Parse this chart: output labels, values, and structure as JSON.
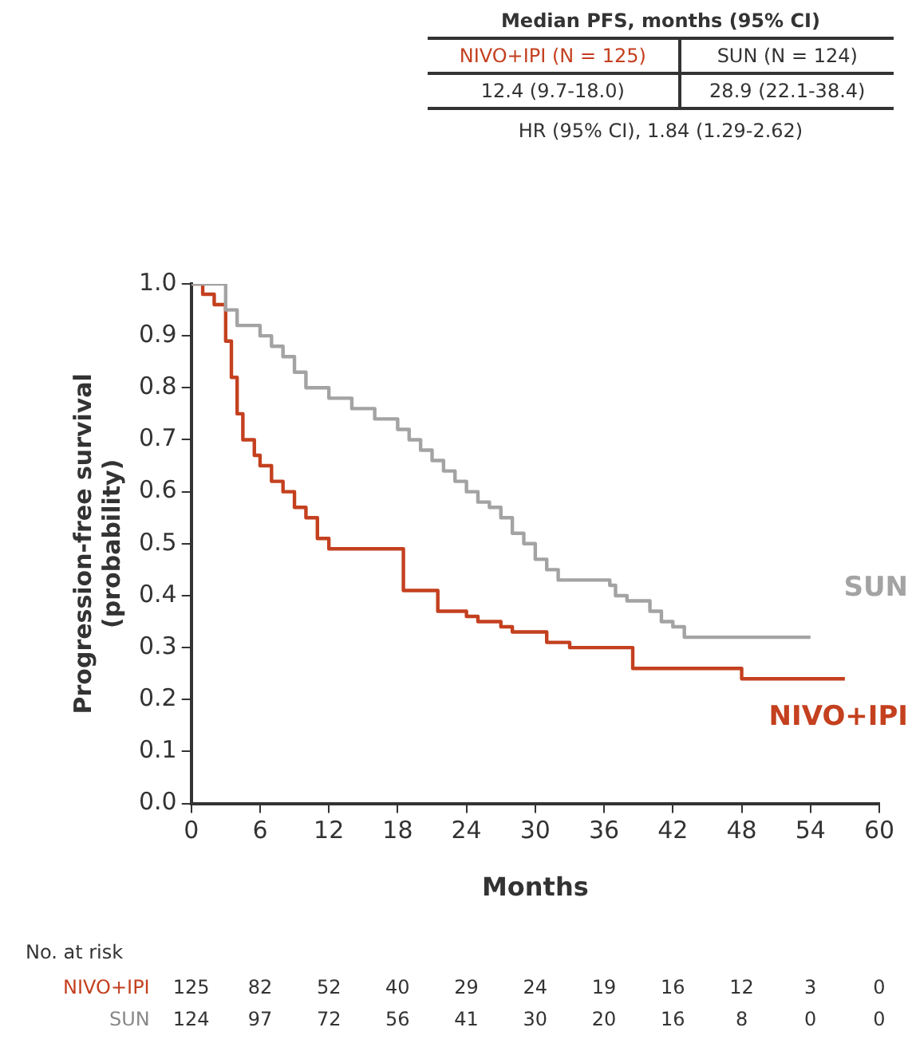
{
  "chart_data": {
    "type": "step",
    "xlabel": "Months",
    "ylabel": "Progression-free survival\n(probability)",
    "xlim": [
      0,
      60
    ],
    "xticks": [
      0,
      6,
      12,
      18,
      24,
      30,
      36,
      42,
      48,
      54,
      60
    ],
    "ylim": [
      0,
      1
    ],
    "yticks": [
      {
        "value": 0,
        "label": "0.0"
      },
      0.1,
      0.2,
      0.3,
      0.4,
      0.5,
      0.6,
      0.7,
      0.8,
      0.9,
      {
        "value": 1,
        "label": "1.0"
      }
    ],
    "grid": false,
    "legend": false,
    "marker": "none",
    "line_style": "solid",
    "series": [
      {
        "name": "SUN",
        "color": "#a3a3a3",
        "x": [
          0,
          3,
          4,
          6,
          7,
          8,
          9,
          10,
          12,
          14,
          16,
          18,
          19,
          20,
          21,
          22,
          23,
          24,
          25,
          26,
          27,
          28,
          29,
          30,
          31,
          32,
          36.5,
          37,
          38,
          40,
          41,
          42,
          43,
          54
        ],
        "values": [
          1,
          0.95,
          0.92,
          0.9,
          0.88,
          0.86,
          0.83,
          0.8,
          0.78,
          0.76,
          0.74,
          0.72,
          0.7,
          0.68,
          0.66,
          0.64,
          0.62,
          0.6,
          0.58,
          0.57,
          0.55,
          0.52,
          0.5,
          0.47,
          0.45,
          0.43,
          0.42,
          0.4,
          0.39,
          0.37,
          0.35,
          0.34,
          0.32,
          0.32
        ]
      },
      {
        "name": "NIVO+IPI",
        "color": "#c4401f",
        "x": [
          0,
          1,
          2,
          3,
          3.5,
          4,
          4.5,
          5.5,
          6,
          7,
          8,
          9,
          10,
          11,
          12,
          18.5,
          21.5,
          24,
          25,
          27,
          28,
          31,
          33,
          38.5,
          48,
          57
        ],
        "values": [
          1,
          0.98,
          0.96,
          0.89,
          0.82,
          0.75,
          0.7,
          0.67,
          0.65,
          0.62,
          0.6,
          0.57,
          0.55,
          0.51,
          0.49,
          0.41,
          0.37,
          0.36,
          0.35,
          0.34,
          0.33,
          0.31,
          0.3,
          0.26,
          0.24,
          0.24
        ]
      }
    ],
    "annotations": [
      "Median PFS, months (95% CI)",
      "NIVO+IPI (N = 125)",
      "SUN (N = 124)",
      "12.4 (9.7-18.0)",
      "28.9 (22.1-38.4)",
      "HR (95% CI), 1.84 (1.29-2.62)",
      "No. at risk",
      "NIVO+IPI",
      "125 82 52 40 29 24 19 16 12 3 0",
      "SUN",
      "124 97 72 56 41 30 20 16 8 0 0"
    ]
  }
}
